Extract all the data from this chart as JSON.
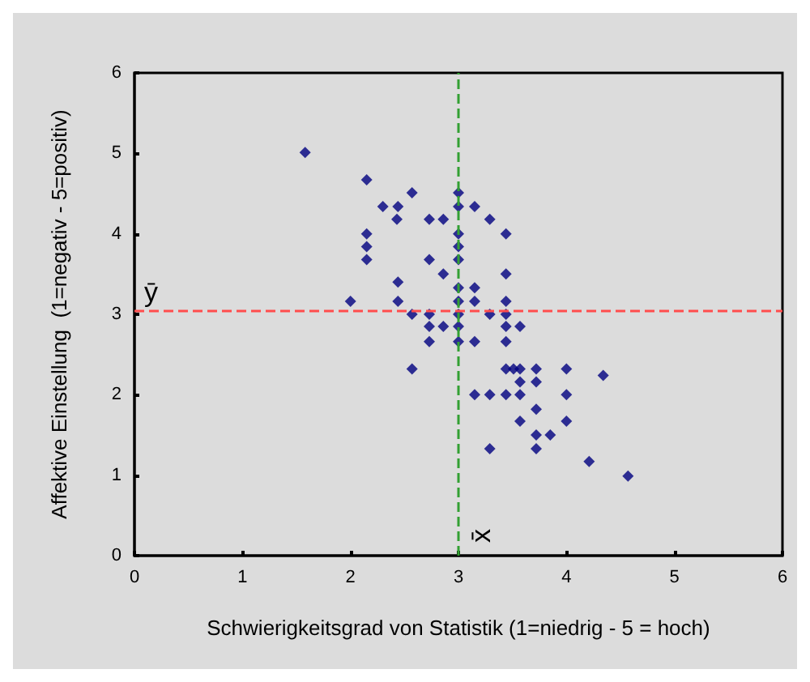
{
  "chart_data": {
    "type": "scatter",
    "xlabel": "Schwierigkeitsgrad von Statistik (1=niedrig - 5 = hoch)",
    "ylabel": "Affektive Einstellung  (1=negativ - 5=positiv)",
    "xlim": [
      0,
      6
    ],
    "ylim": [
      0,
      6
    ],
    "xticks": [
      0,
      1,
      2,
      3,
      4,
      5,
      6
    ],
    "yticks": [
      0,
      1,
      2,
      3,
      4,
      5,
      6
    ],
    "grid": false,
    "marker": "diamond",
    "series": [
      {
        "color": "#000080",
        "x": [
          1.58,
          2.15,
          2.3,
          2.44,
          2.57,
          2.43,
          2.15,
          2.15,
          2.15,
          2.44,
          2.0,
          2.44,
          2.57,
          2.57,
          2.73,
          2.86,
          2.73,
          2.86,
          2.73,
          2.73,
          2.86,
          2.73,
          3.0,
          3.0,
          3.0,
          3.0,
          3.0,
          3.0,
          3.0,
          3.0,
          3.0,
          3.0,
          3.15,
          3.15,
          3.15,
          3.15,
          3.15,
          3.29,
          3.29,
          3.29,
          3.29,
          3.44,
          3.44,
          3.44,
          3.44,
          3.44,
          3.44,
          3.44,
          3.44,
          3.51,
          3.57,
          3.57,
          3.57,
          3.57,
          3.57,
          3.72,
          3.72,
          3.72,
          3.72,
          3.72,
          3.85,
          4.0,
          4.0,
          4.0,
          4.34,
          4.21,
          4.57
        ],
        "values": [
          5.01,
          4.67,
          4.34,
          4.34,
          4.51,
          4.18,
          4.0,
          3.84,
          3.68,
          3.4,
          3.16,
          3.16,
          3.0,
          2.32,
          4.18,
          4.18,
          3.68,
          3.5,
          3.0,
          2.85,
          2.85,
          2.66,
          4.51,
          4.34,
          4.0,
          3.84,
          3.68,
          3.33,
          3.16,
          3.0,
          2.85,
          2.66,
          4.34,
          3.33,
          3.16,
          2.66,
          2.0,
          4.18,
          3.0,
          2.0,
          1.33,
          4.0,
          3.5,
          3.16,
          3.0,
          2.85,
          2.66,
          2.32,
          2.0,
          2.32,
          2.32,
          2.85,
          2.16,
          2.0,
          1.67,
          2.32,
          2.16,
          1.82,
          1.5,
          1.33,
          1.5,
          2.32,
          2.0,
          1.67,
          2.24,
          1.17,
          0.99
        ]
      }
    ],
    "ref_lines": [
      {
        "axis": "y",
        "value": 3.04,
        "label": "ȳ",
        "color": "#ff4d4d",
        "line_style": "dashed"
      },
      {
        "axis": "x",
        "value": 2.99,
        "label": "x̄",
        "color": "#33a033",
        "line_style": "dashed"
      }
    ]
  }
}
